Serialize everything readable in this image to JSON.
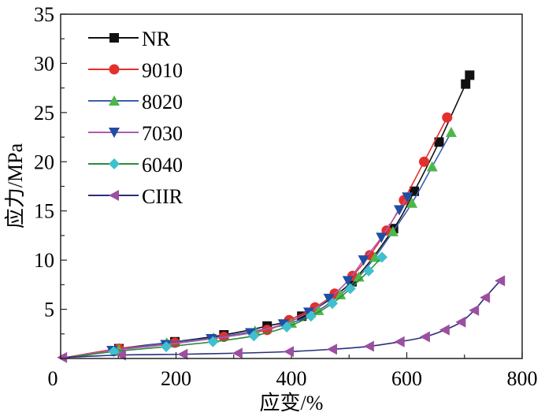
{
  "chart_data": {
    "type": "line",
    "title": "",
    "xlabel": "应变/%",
    "ylabel": "应力/MPa",
    "xlim": [
      0,
      800
    ],
    "ylim": [
      0,
      35
    ],
    "xticks": [
      "0",
      "200",
      "400",
      "600",
      "800"
    ],
    "yticks": [
      "5",
      "10",
      "15",
      "20",
      "25",
      "30",
      "35"
    ],
    "grid": false,
    "legend_position": "top-left",
    "series": [
      {
        "name": "NR",
        "marker": "square",
        "marker_color": "#111111",
        "line_color": "#111111",
        "x": [
          0,
          101,
          198,
          283,
          358,
          418,
          505,
          577,
          613,
          656,
          702,
          709
        ],
        "y": [
          0,
          1.0,
          1.7,
          2.4,
          3.3,
          4.3,
          7.8,
          13.2,
          17.0,
          22.0,
          27.9,
          28.8
        ]
      },
      {
        "name": "9010",
        "marker": "circle",
        "marker_color": "#e4302d",
        "line_color": "#e4302d",
        "x": [
          0,
          101,
          198,
          283,
          358,
          396,
          441,
          475,
          506,
          536,
          565,
          595,
          630,
          670
        ],
        "y": [
          0,
          1.0,
          1.6,
          2.2,
          2.9,
          3.9,
          5.2,
          6.6,
          8.4,
          10.5,
          13.0,
          16.1,
          20.0,
          24.5
        ]
      },
      {
        "name": "8020",
        "marker": "triangle-up",
        "marker_color": "#4cb848",
        "line_color": "#3a5fb0",
        "x": [
          0,
          101,
          184,
          265,
          337,
          400,
          447,
          485,
          517,
          545,
          576,
          609,
          644,
          677
        ],
        "y": [
          0,
          0.9,
          1.6,
          2.1,
          2.8,
          3.6,
          4.9,
          6.5,
          8.3,
          10.3,
          12.9,
          15.8,
          19.5,
          23.0
        ]
      },
      {
        "name": "7030",
        "marker": "triangle-down",
        "marker_color": "#1f4ea3",
        "line_color": "#b05bb0",
        "x": [
          0,
          89,
          182,
          261,
          329,
          386,
          430,
          465,
          498,
          525,
          556,
          587,
          601
        ],
        "y": [
          0,
          0.8,
          1.4,
          2.0,
          2.6,
          3.5,
          4.7,
          6.1,
          7.9,
          10.0,
          12.3,
          15.1,
          16.4
        ]
      },
      {
        "name": "6040",
        "marker": "diamond",
        "marker_color": "#3fc0cf",
        "line_color": "#2e8b3e",
        "x": [
          0,
          92,
          183,
          264,
          335,
          392,
          434,
          471,
          502,
          534,
          557
        ],
        "y": [
          0,
          0.7,
          1.2,
          1.7,
          2.3,
          3.2,
          4.3,
          5.6,
          7.1,
          8.9,
          10.3
        ]
      },
      {
        "name": "CIIR",
        "marker": "triangle-left",
        "marker_color": "#9b4fa0",
        "line_color": "#2b2e7a",
        "x": [
          3,
          105,
          212,
          307,
          396,
          471,
          535,
          588,
          632,
          666,
          694,
          717,
          736,
          762
        ],
        "y": [
          0.1,
          0.35,
          0.43,
          0.54,
          0.7,
          0.94,
          1.24,
          1.7,
          2.2,
          2.9,
          3.7,
          4.9,
          6.2,
          7.9
        ]
      }
    ]
  }
}
